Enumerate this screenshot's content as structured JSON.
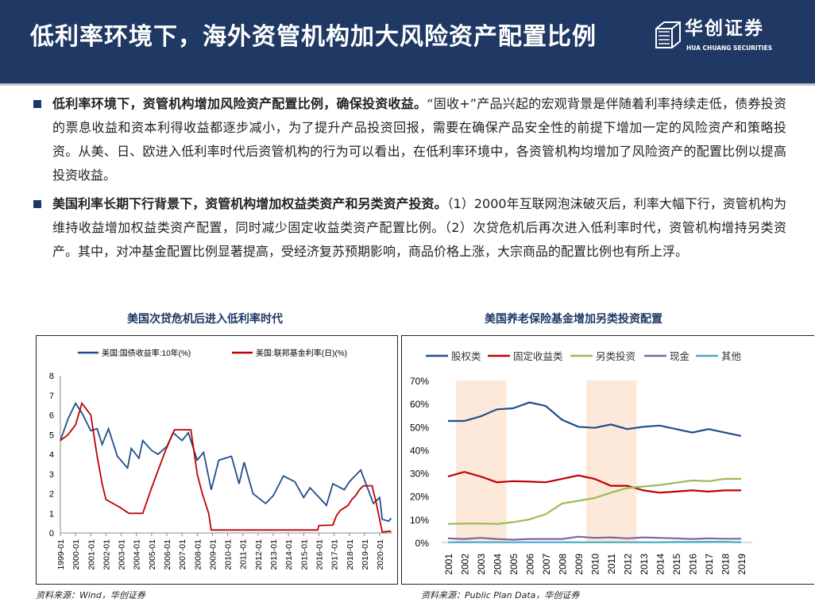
{
  "header": {
    "title": "低利率环境下，海外资管机构加大风险资产配置比例",
    "logo_cn": "华创证券",
    "logo_en": "HUA CHUANG SECURITIES"
  },
  "paragraphs": [
    {
      "bold": "低利率环境下，资管机构增加风险资产配置比例，确保投资收益。",
      "text": "“固收+”产品兴起的宏观背景是伴随着利率持续走低，债券投资的票息收益和资本利得收益都逐步减小，为了提升产品投资回报，需要在确保产品安全性的前提下增加一定的风险资产和策略投资。从美、日、欧进入低利率时代后资管机构的行为可以看出，在低利率环境中，各资管机构均增加了风险资产的配置比例以提高投资收益。"
    },
    {
      "bold": "美国利率长期下行背景下，资管机构增加权益类资产和另类资产投资。",
      "text": "（1）2000年互联网泡沫破灭后，利率大幅下行，资管机构为维持收益增加权益类资产配置，同时减少固定收益类资产配置比例。（2）次贷危机后再次进入低利率时代，资管机构增持另类资产。其中，对冲基金配置比例显著提高，受经济复苏预期影响，商品价格上涨，大宗商品的配置比例也有所上浮。"
    }
  ],
  "chart_titles": {
    "left": "美国次贷危机后进入低利率时代",
    "right": "美国养老保险基金增加另类投资配置"
  },
  "sources": {
    "left": "资料来源：Wind，华创证券",
    "right": "资料来源：Public Plan Data，华创证券"
  },
  "chart_data": [
    {
      "type": "line",
      "xlabel": "",
      "ylabel": "",
      "ylim": [
        0,
        8
      ],
      "yticks": [
        "0",
        "1",
        "2",
        "3",
        "4",
        "5",
        "6",
        "7",
        "8"
      ],
      "xticks": [
        "1999-01",
        "2000-01",
        "2001-01",
        "2002-01",
        "2003-01",
        "2004-01",
        "2005-01",
        "2006-01",
        "2007-01",
        "2008-01",
        "2009-01",
        "2010-01",
        "2011-01",
        "2012-01",
        "2013-01",
        "2014-01",
        "2015-01",
        "2016-01",
        "2017-01",
        "2018-01",
        "2019-01",
        "2020-01"
      ],
      "xlim": [
        "1999-01",
        "2020-11"
      ],
      "grid": false,
      "legend": "top",
      "series": [
        {
          "name": "美国:国债收益率:10年(%)",
          "color": "#1f4e8c",
          "points": [
            [
              "1999-01",
              4.7
            ],
            [
              "1999-07",
              5.8
            ],
            [
              "2000-01",
              6.6
            ],
            [
              "2000-06",
              6.1
            ],
            [
              "2001-01",
              5.2
            ],
            [
              "2001-06",
              5.3
            ],
            [
              "2001-10",
              4.5
            ],
            [
              "2002-03",
              5.3
            ],
            [
              "2002-10",
              3.9
            ],
            [
              "2003-06",
              3.3
            ],
            [
              "2003-09",
              4.3
            ],
            [
              "2004-03",
              3.8
            ],
            [
              "2004-06",
              4.7
            ],
            [
              "2005-01",
              4.2
            ],
            [
              "2005-06",
              4.0
            ],
            [
              "2006-01",
              4.4
            ],
            [
              "2006-06",
              5.1
            ],
            [
              "2007-01",
              4.7
            ],
            [
              "2007-06",
              5.1
            ],
            [
              "2008-01",
              3.7
            ],
            [
              "2008-06",
              4.1
            ],
            [
              "2008-12",
              2.2
            ],
            [
              "2009-06",
              3.7
            ],
            [
              "2010-04",
              3.9
            ],
            [
              "2010-10",
              2.5
            ],
            [
              "2011-02",
              3.6
            ],
            [
              "2011-09",
              2.0
            ],
            [
              "2012-07",
              1.5
            ],
            [
              "2013-01",
              1.9
            ],
            [
              "2013-09",
              2.9
            ],
            [
              "2014-06",
              2.6
            ],
            [
              "2015-01",
              1.8
            ],
            [
              "2015-06",
              2.3
            ],
            [
              "2016-07",
              1.4
            ],
            [
              "2016-12",
              2.5
            ],
            [
              "2017-09",
              2.2
            ],
            [
              "2018-01",
              2.6
            ],
            [
              "2018-10",
              3.2
            ],
            [
              "2019-08",
              1.5
            ],
            [
              "2020-01",
              1.8
            ],
            [
              "2020-03",
              0.7
            ],
            [
              "2020-08",
              0.6
            ],
            [
              "2020-10",
              0.75
            ]
          ]
        },
        {
          "name": "美国:联邦基金利率(日)(%)",
          "color": "#c00000",
          "points": [
            [
              "1999-01",
              4.7
            ],
            [
              "1999-07",
              5.0
            ],
            [
              "2000-01",
              5.5
            ],
            [
              "2000-06",
              6.6
            ],
            [
              "2001-01",
              6.0
            ],
            [
              "2001-06",
              3.9
            ],
            [
              "2001-10",
              2.5
            ],
            [
              "2002-01",
              1.7
            ],
            [
              "2002-12",
              1.3
            ],
            [
              "2003-07",
              1.0
            ],
            [
              "2004-06",
              1.0
            ],
            [
              "2005-01",
              2.3
            ],
            [
              "2005-12",
              4.2
            ],
            [
              "2006-07",
              5.25
            ],
            [
              "2007-08",
              5.25
            ],
            [
              "2008-01",
              3.0
            ],
            [
              "2008-05",
              2.0
            ],
            [
              "2008-10",
              1.0
            ],
            [
              "2008-12",
              0.15
            ],
            [
              "2015-12",
              0.15
            ],
            [
              "2016-01",
              0.38
            ],
            [
              "2016-12",
              0.4
            ],
            [
              "2017-03",
              0.9
            ],
            [
              "2017-06",
              1.15
            ],
            [
              "2017-12",
              1.4
            ],
            [
              "2018-03",
              1.7
            ],
            [
              "2018-06",
              1.9
            ],
            [
              "2018-09",
              2.2
            ],
            [
              "2018-12",
              2.4
            ],
            [
              "2019-07",
              2.4
            ],
            [
              "2019-08",
              2.1
            ],
            [
              "2019-10",
              1.6
            ],
            [
              "2020-03",
              0.05
            ],
            [
              "2020-10",
              0.09
            ]
          ]
        }
      ]
    },
    {
      "type": "line",
      "xlabel": "",
      "ylabel": "",
      "ylim": [
        0,
        70
      ],
      "yticks": [
        "0%",
        "10%",
        "20%",
        "30%",
        "40%",
        "50%",
        "60%",
        "70%"
      ],
      "categories": [
        "2001",
        "2002",
        "2003",
        "2004",
        "2005",
        "2006",
        "2007",
        "2008",
        "2009",
        "2010",
        "2011",
        "2012",
        "2013",
        "2014",
        "2015",
        "2016",
        "2017",
        "2018",
        "2019"
      ],
      "shaded_ranges": [
        [
          "2001",
          "2004"
        ],
        [
          "2009",
          "2012"
        ]
      ],
      "shade_color": "#fde9d9",
      "grid": false,
      "legend": "top",
      "series": [
        {
          "name": "股权类",
          "color": "#1f4e8c",
          "values": [
            52.5,
            52.5,
            54.5,
            57.5,
            58,
            60.5,
            59,
            53,
            50,
            49.5,
            51,
            49,
            50,
            50.5,
            49,
            47.5,
            49,
            47.5,
            46
          ]
        },
        {
          "name": "固定收益类",
          "color": "#c00000",
          "values": [
            28.5,
            30.5,
            28.5,
            26,
            26.5,
            26.3,
            26,
            27.5,
            29,
            27.5,
            24.5,
            24.5,
            22.5,
            21.5,
            22,
            22.5,
            22,
            22.5,
            22.5
          ]
        },
        {
          "name": "另类投资",
          "color": "#9bbb59",
          "values": [
            8,
            8.2,
            8.2,
            8,
            8.8,
            10,
            12.2,
            16.8,
            18,
            19.2,
            21.5,
            23.5,
            24.2,
            24.8,
            25.8,
            26.8,
            26.5,
            27.5,
            27.5
          ]
        },
        {
          "name": "现金",
          "color": "#8064a2",
          "values": [
            1.8,
            1.5,
            2,
            1.5,
            1.2,
            1.5,
            1.5,
            1.5,
            2.5,
            2,
            2.2,
            1.8,
            2.2,
            2,
            1.8,
            1.5,
            1.8,
            1.6,
            1.6
          ]
        },
        {
          "name": "其他",
          "color": "#4bacc6",
          "values": [
            0.1,
            0.1,
            0.1,
            0.1,
            0.1,
            0.1,
            0.1,
            0.1,
            0.1,
            0.1,
            0.1,
            0.1,
            0.1,
            0.1,
            0.2,
            0.2,
            0.3,
            0.3,
            0.1
          ]
        }
      ]
    }
  ]
}
